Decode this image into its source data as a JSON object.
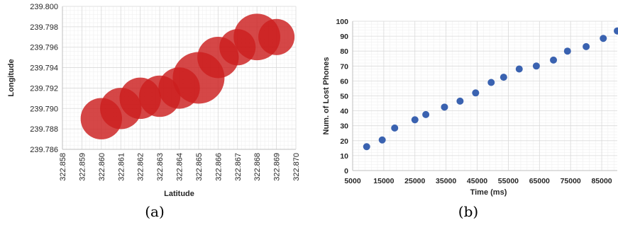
{
  "chart_data": [
    {
      "type": "bubble",
      "panel_label": "(a)",
      "xlabel": "Latitude",
      "ylabel": "Longitude",
      "xlim": [
        322.858,
        322.87
      ],
      "ylim": [
        239.786,
        239.8
      ],
      "x_ticks": [
        "322.858",
        "322.859",
        "322.860",
        "322.861",
        "322.862",
        "322.863",
        "322.864",
        "322.865",
        "322.866",
        "322.867",
        "322.868",
        "322.869",
        "322.870"
      ],
      "y_ticks": [
        "239.786",
        "239.788",
        "239.790",
        "239.792",
        "239.794",
        "239.796",
        "239.798",
        "239.800"
      ],
      "grid": true,
      "color": "#cc1f1f",
      "points": [
        {
          "x": 322.86,
          "y": 239.789,
          "r": 4
        },
        {
          "x": 322.861,
          "y": 239.79,
          "r": 4
        },
        {
          "x": 322.862,
          "y": 239.791,
          "r": 4
        },
        {
          "x": 322.863,
          "y": 239.7912,
          "r": 4
        },
        {
          "x": 322.864,
          "y": 239.792,
          "r": 4
        },
        {
          "x": 322.865,
          "y": 239.793,
          "r": 5
        },
        {
          "x": 322.866,
          "y": 239.795,
          "r": 4
        },
        {
          "x": 322.867,
          "y": 239.796,
          "r": 3.5
        },
        {
          "x": 322.868,
          "y": 239.797,
          "r": 4.5
        },
        {
          "x": 322.869,
          "y": 239.797,
          "r": 3.5
        }
      ]
    },
    {
      "type": "scatter",
      "panel_label": "(b)",
      "xlabel": "Time (ms)",
      "ylabel": "Num. of Lost Phones",
      "xlim": [
        5000,
        90000
      ],
      "ylim": [
        0,
        100
      ],
      "x_ticks": [
        "5000",
        "15000",
        "25000",
        "35000",
        "45000",
        "55000",
        "65000",
        "75000",
        "85000"
      ],
      "y_ticks": [
        "0",
        "10",
        "20",
        "30",
        "40",
        "50",
        "60",
        "70",
        "80",
        "90",
        "100"
      ],
      "grid": true,
      "color": "#3a62b0",
      "points": [
        {
          "x": 9500,
          "y": 16
        },
        {
          "x": 14500,
          "y": 20.5
        },
        {
          "x": 18500,
          "y": 28.5
        },
        {
          "x": 25000,
          "y": 34
        },
        {
          "x": 28500,
          "y": 37.5
        },
        {
          "x": 34500,
          "y": 42.5
        },
        {
          "x": 39500,
          "y": 46.5
        },
        {
          "x": 44500,
          "y": 52
        },
        {
          "x": 49500,
          "y": 59
        },
        {
          "x": 53500,
          "y": 62.5
        },
        {
          "x": 58500,
          "y": 68
        },
        {
          "x": 64000,
          "y": 70
        },
        {
          "x": 69500,
          "y": 74
        },
        {
          "x": 74000,
          "y": 80
        },
        {
          "x": 80000,
          "y": 83
        },
        {
          "x": 85500,
          "y": 88.5
        },
        {
          "x": 90000,
          "y": 93.5
        }
      ]
    }
  ]
}
